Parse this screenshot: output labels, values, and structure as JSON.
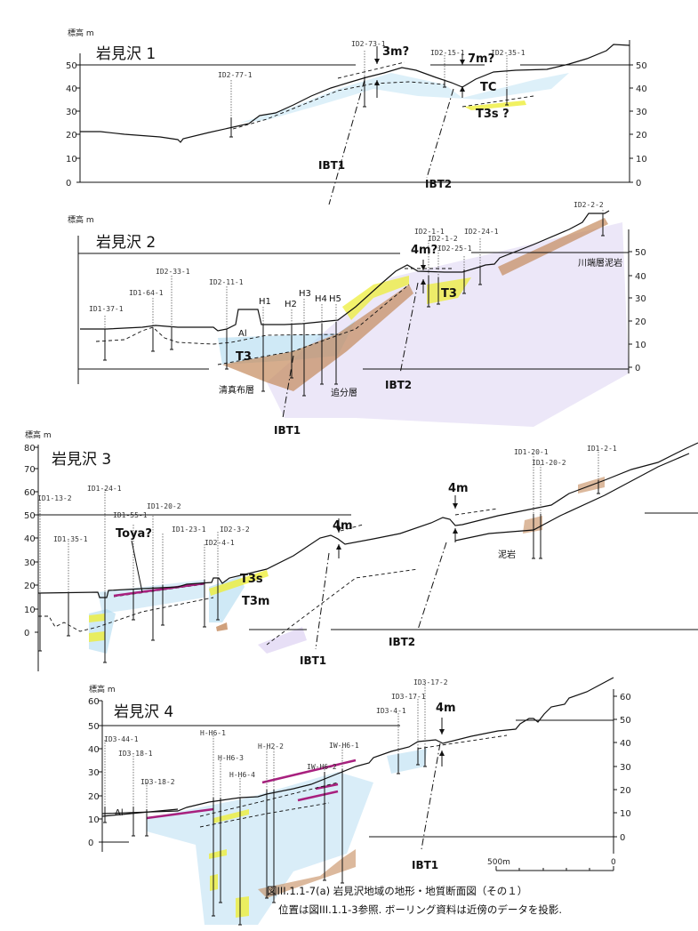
{
  "figure": {
    "caption_line1": "図III.1.1-7(a) 岩見沢地域の地形・地質断面図（その１）",
    "caption_line2": "位置は図III.1.1-3参照. ボーリング資料は近傍のデータを投影."
  },
  "colors": {
    "sand_gravel_blue": "#9fd3ee",
    "sand_yellow": "#eeee3a",
    "brown_layer": "#c48a5c",
    "bedrock_purple": "#c9b9ea",
    "toya_magenta": "#a8207e"
  },
  "panels": [
    {
      "title": "岩見沢 1",
      "axis_label": "標高 m",
      "ticks_left": [
        "50",
        "40",
        "30",
        "20",
        "10",
        "0"
      ],
      "ticks_right": [
        "50",
        "40",
        "30",
        "20",
        "10",
        "0"
      ],
      "boreholes": [
        "ID2-77-1",
        "ID2-73-1",
        "ID2-15-1",
        "ID2-35-1"
      ],
      "annotations": {
        "offset_a": "3m?",
        "offset_b": "7m?",
        "unit_tc": "TC",
        "unit_t3s": "T3s ?"
      },
      "faults": [
        "IBT1",
        "IBT2"
      ]
    },
    {
      "title": "岩見沢 2",
      "axis_label": "標高 m",
      "ticks_right": [
        "50",
        "40",
        "30",
        "20",
        "10",
        "0"
      ],
      "boreholes": [
        "ID1-37-1",
        "ID1-64-1",
        "ID2-33-1",
        "ID2-11-1",
        "H1",
        "H2",
        "H3",
        "H4",
        "H5",
        "ID2-1-1",
        "ID2-1-2",
        "ID2-25-1",
        "ID2-24-1",
        "ID2-2-2"
      ],
      "annotations": {
        "offset": "4m?",
        "unit_al": "Al",
        "unit_t3_left": "T3",
        "unit_t3_right": "T3",
        "formation_left": "清真布層",
        "formation_mid": "追分層",
        "formation_right": "川端層泥岩"
      },
      "faults": [
        "IBT1",
        "IBT2"
      ]
    },
    {
      "title": "岩見沢 3",
      "axis_label": "標高 m",
      "ticks_left": [
        "80",
        "70",
        "60",
        "50",
        "40",
        "30",
        "20",
        "10",
        "0"
      ],
      "boreholes": [
        "ID1-13-2",
        "ID1-35-1",
        "ID1-24-1",
        "ID1-55-1",
        "ID1-20-2",
        "ID1-23-1",
        "ID2-4-1",
        "ID2-3-2",
        "ID1-20-1",
        "ID1-20-2",
        "ID1-2-1"
      ],
      "annotations": {
        "toya": "Toya?",
        "unit_t3s": "T3s",
        "unit_t3m": "T3m",
        "offset_a": "4m",
        "offset_b": "4m",
        "mudstone": "泥岩"
      },
      "faults": [
        "IBT1",
        "IBT2"
      ]
    },
    {
      "title": "岩見沢 4",
      "axis_label": "標高 m",
      "ticks_left": [
        "60",
        "50",
        "40",
        "30",
        "20",
        "10",
        "0"
      ],
      "ticks_right": [
        "60",
        "50",
        "40",
        "30",
        "20",
        "10",
        "0"
      ],
      "boreholes": [
        "ID3-44-1",
        "ID3-18-1",
        "ID3-18-2",
        "H-H6-1",
        "H-H6-3",
        "H-H6-4",
        "H-H2-2",
        "IW-H6-2",
        "IW-H6-1",
        "ID3-4-1",
        "ID3-17-1",
        "ID3-17-2"
      ],
      "annotations": {
        "offset": "4m",
        "unit_al": "Al"
      },
      "faults": [
        "IBT1"
      ]
    }
  ],
  "scale_bar": {
    "label_left": "500m",
    "label_right": "0"
  }
}
